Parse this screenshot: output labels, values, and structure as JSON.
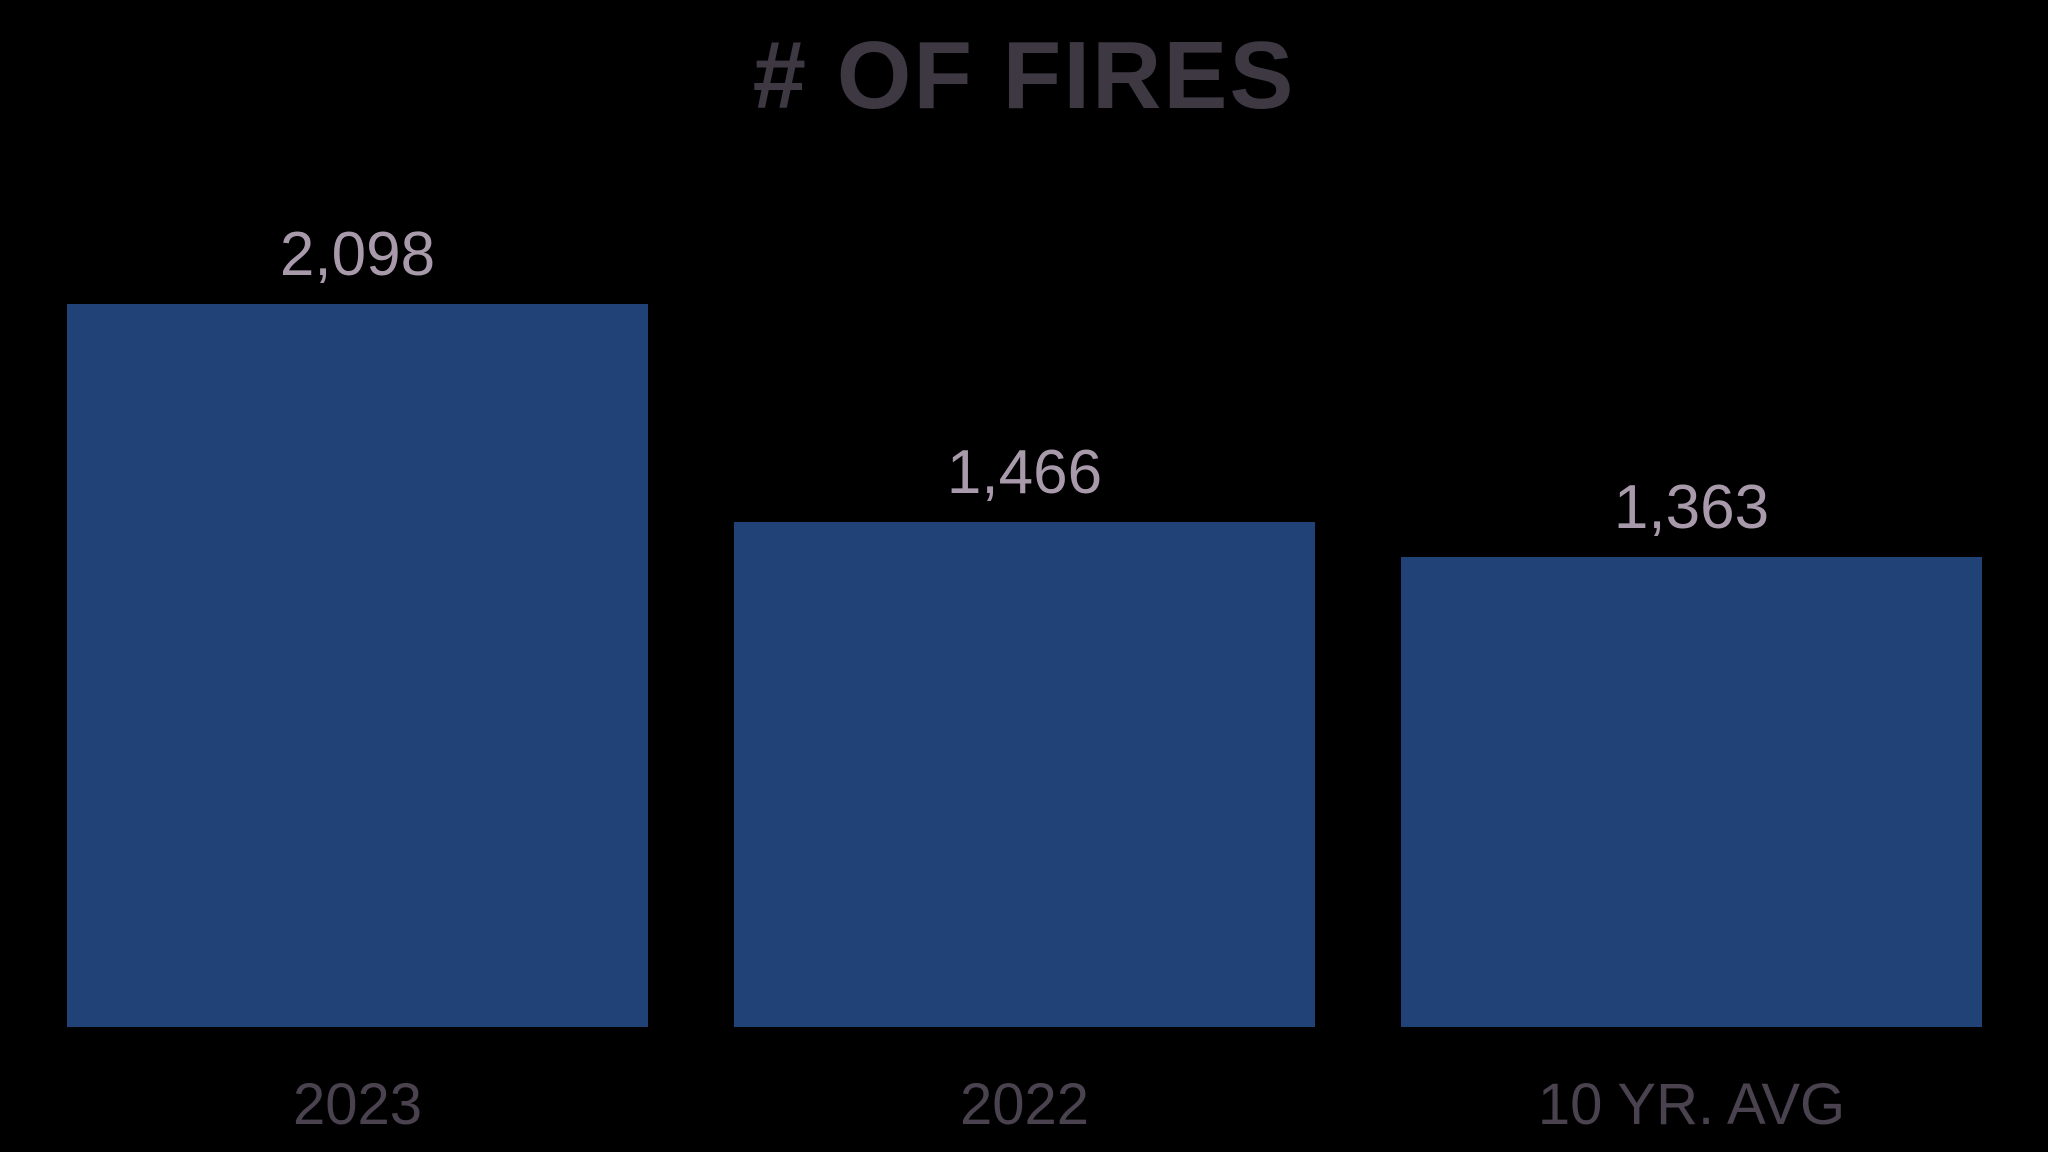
{
  "chart_data": {
    "type": "bar",
    "title": "# OF FIRES",
    "categories": [
      "2023",
      "2022",
      "10 YR. AVG"
    ],
    "values": [
      2098,
      1466,
      1363
    ],
    "value_labels": [
      "2,098",
      "1,466",
      "1,363"
    ],
    "xlabel": "",
    "ylabel": "",
    "ylim": [
      0,
      2098
    ],
    "grid": false,
    "legend": false,
    "axes_visible": false,
    "colors": {
      "background": "#000000",
      "bar_fill": "#214276",
      "title_text": "#3E3843",
      "value_label_text": "#A89AAB",
      "category_label_text": "#4A434F"
    }
  }
}
